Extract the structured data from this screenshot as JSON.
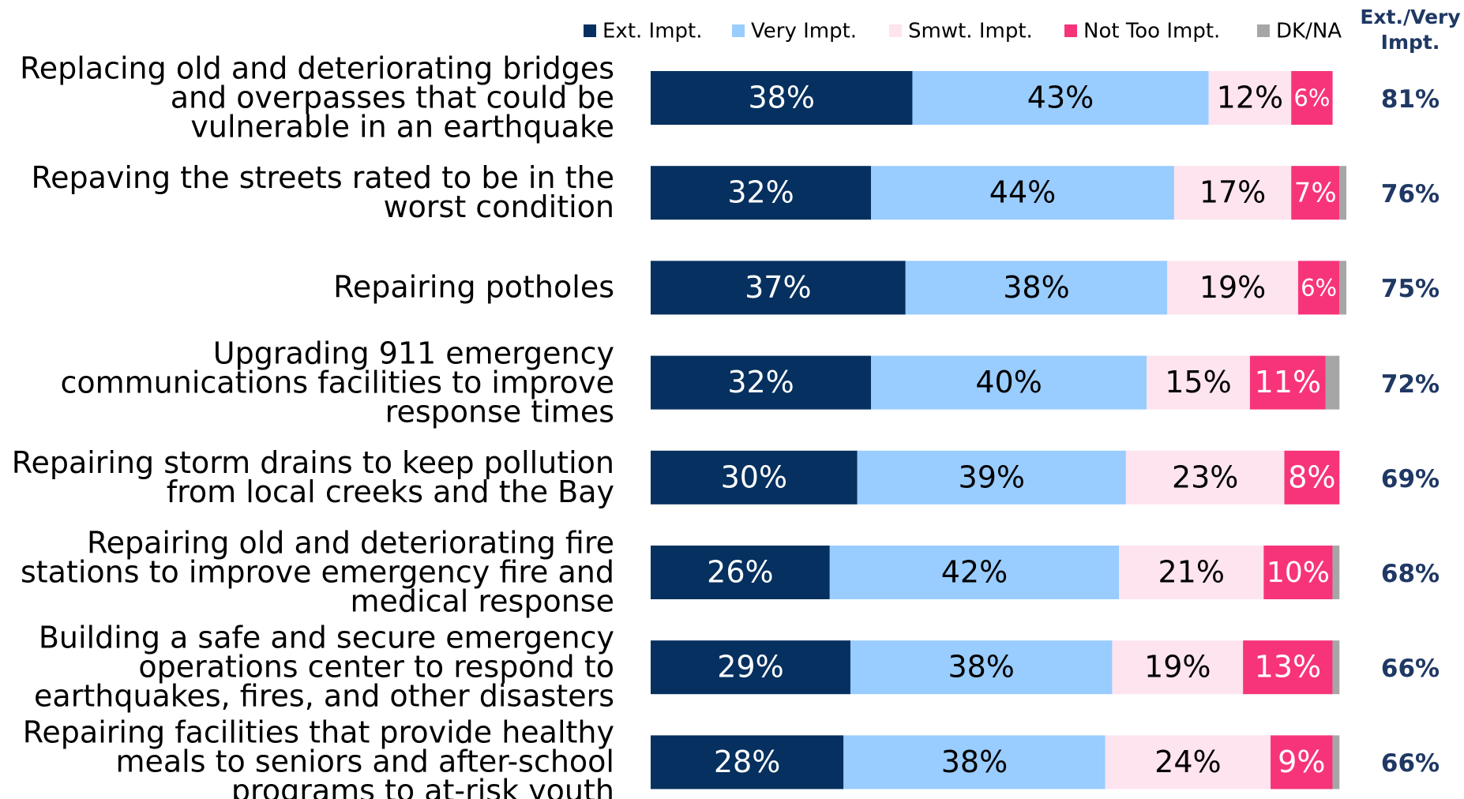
{
  "chart_data": {
    "type": "stacked-bar-horizontal",
    "categories": [
      "Replacing old and deteriorating bridges and overpasses that could be vulnerable in an earthquake",
      "Repaving the streets rated to be in the worst condition",
      "Repairing potholes",
      "Upgrading 911 emergency communications facilities to improve response times",
      "Repairing storm drains to keep pollution from local creeks and the Bay",
      "Repairing old and deteriorating fire stations to improve emergency fire and medical response",
      "Building a safe and secure emergency operations center to respond to earthquakes, fires, and other disasters",
      "Repairing facilities that provide healthy meals to seniors and after-school programs to at-risk youth"
    ],
    "series": [
      {
        "name": "Ext. Impt.",
        "color": "#05305f",
        "label_color": "#ffffff",
        "values": [
          38,
          32,
          37,
          32,
          30,
          26,
          29,
          28
        ],
        "value_labels": [
          "38%",
          "32%",
          "37%",
          "32%",
          "30%",
          "26%",
          "29%",
          "28%"
        ]
      },
      {
        "name": "Very Impt.",
        "color": "#99ccff",
        "label_color": "#000000",
        "values": [
          43,
          44,
          38,
          40,
          39,
          42,
          38,
          38
        ],
        "value_labels": [
          "43%",
          "44%",
          "38%",
          "40%",
          "39%",
          "42%",
          "38%",
          "38%"
        ]
      },
      {
        "name": "Smwt. Impt.",
        "color": "#fde4ee",
        "label_color": "#000000",
        "values": [
          12,
          17,
          19,
          15,
          23,
          21,
          19,
          24
        ],
        "value_labels": [
          "12%",
          "17%",
          "19%",
          "15%",
          "23%",
          "21%",
          "19%",
          "24%"
        ]
      },
      {
        "name": "Not Too Impt.",
        "color": "#f7347a",
        "label_color": "#ffffff",
        "values": [
          6,
          7,
          6,
          11,
          8,
          10,
          13,
          9
        ],
        "value_labels": [
          "6%",
          "7%",
          "6%",
          "11%",
          "8%",
          "10%",
          "13%",
          "9%"
        ]
      },
      {
        "name": "DK/NA",
        "color": "#a6a6a6",
        "values": [
          0,
          1,
          1,
          2,
          0,
          1,
          1,
          1
        ]
      }
    ],
    "net_title": "Ext./Very Impt.",
    "net_color": "#1f3864",
    "net_values": [
      81,
      76,
      75,
      72,
      69,
      68,
      66,
      66
    ],
    "net_value_labels": [
      "81%",
      "76%",
      "75%",
      "72%",
      "69%",
      "68%",
      "66%",
      "66%"
    ]
  }
}
